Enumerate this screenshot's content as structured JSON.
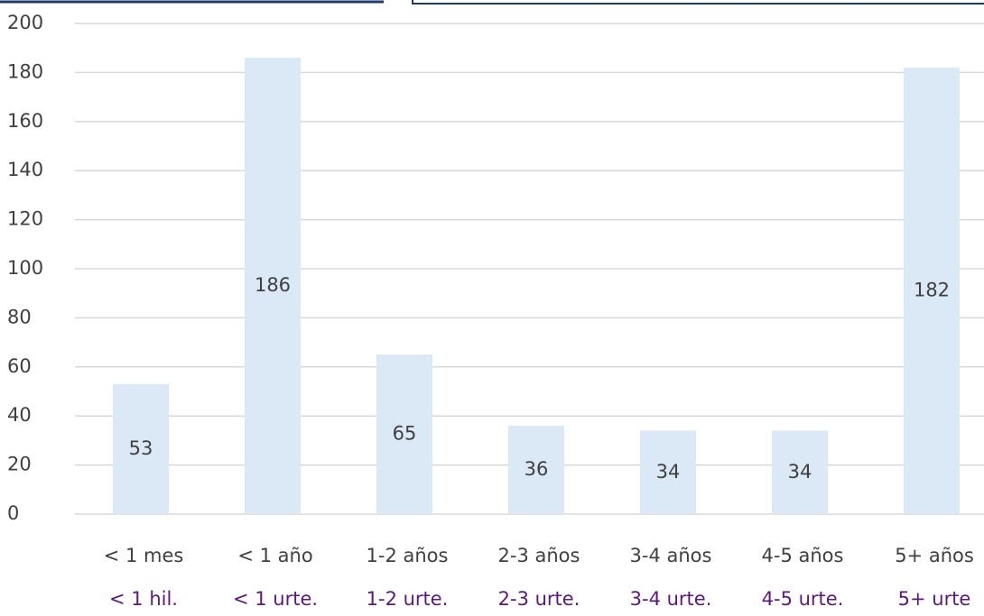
{
  "chart_data": {
    "type": "bar",
    "categories": [
      "< 1 mes",
      "< 1 año",
      "1-2 años",
      "2-3 años",
      "3-4 años",
      "4-5 años",
      "5+ años"
    ],
    "category_translations": [
      "< 1 hil.",
      "< 1 urte.",
      "1-2 urte.",
      "2-3 urte.",
      "3-4 urte.",
      "4-5 urte.",
      "5+ urte"
    ],
    "values": [
      53,
      186,
      65,
      36,
      34,
      34,
      182
    ],
    "color": "#dbe8f5",
    "ylim": [
      0,
      200
    ],
    "yticks": [
      0,
      20,
      40,
      60,
      80,
      100,
      120,
      140,
      160,
      180,
      200
    ],
    "grid": true
  }
}
